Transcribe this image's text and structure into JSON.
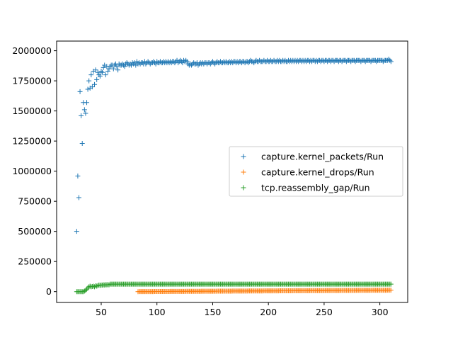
{
  "chart_data": {
    "type": "scatter",
    "marker": "+",
    "xlim": [
      10,
      325
    ],
    "ylim": [
      -90000,
      2080000
    ],
    "x_ticks": [
      50,
      100,
      150,
      200,
      250,
      300
    ],
    "y_ticks": [
      0,
      250000,
      500000,
      750000,
      1000000,
      1250000,
      1500000,
      1750000,
      2000000
    ],
    "x_tick_labels": [
      "50",
      "100",
      "150",
      "200",
      "250",
      "300"
    ],
    "y_tick_labels": [
      "0",
      "250000",
      "500000",
      "750000",
      "1000000",
      "1250000",
      "1500000",
      "1750000",
      "2000000"
    ],
    "grid": false,
    "legend_position": "center-right",
    "series": [
      {
        "name": "capture.kernel_packets/Run",
        "color": "#1f77b4",
        "x_start": 28,
        "x_step": 1,
        "values": [
          500000,
          960000,
          780000,
          1660000,
          1460000,
          1230000,
          1570000,
          1510000,
          1480000,
          1570000,
          1680000,
          1750000,
          1690000,
          1800000,
          1700000,
          1830000,
          1720000,
          1840000,
          1760000,
          1820000,
          1800000,
          1790000,
          1830000,
          1820000,
          1860000,
          1880000,
          1800000,
          1870000,
          1830000,
          1850000,
          1870000,
          1880000,
          1880000,
          1850000,
          1880000,
          1890000,
          1870000,
          1840000,
          1890000,
          1880000,
          1880000,
          1890000,
          1880000,
          1870000,
          1890000,
          1900000,
          1890000,
          1880000,
          1890000,
          1880000,
          1900000,
          1890000,
          1900000,
          1880000,
          1910000,
          1890000,
          1900000,
          1890000,
          1900000,
          1900000,
          1890000,
          1910000,
          1890000,
          1900000,
          1910000,
          1900000,
          1890000,
          1900000,
          1900000,
          1910000,
          1900000,
          1890000,
          1910000,
          1900000,
          1900000,
          1910000,
          1900000,
          1900000,
          1910000,
          1900000,
          1910000,
          1900000,
          1910000,
          1900000,
          1910000,
          1900000,
          1910000,
          1910000,
          1900000,
          1910000,
          1920000,
          1900000,
          1910000,
          1920000,
          1910000,
          1900000,
          1920000,
          1910000,
          1920000,
          1910000,
          1890000,
          1880000,
          1890000,
          1880000,
          1890000,
          1900000,
          1890000,
          1890000,
          1900000,
          1880000,
          1890000,
          1900000,
          1890000,
          1900000,
          1890000,
          1900000,
          1900000,
          1890000,
          1900000,
          1900000,
          1890000,
          1900000,
          1910000,
          1900000,
          1890000,
          1900000,
          1910000,
          1900000,
          1900000,
          1910000,
          1900000,
          1900000,
          1910000,
          1900000,
          1910000,
          1900000,
          1900000,
          1910000,
          1900000,
          1910000,
          1900000,
          1910000,
          1910000,
          1900000,
          1910000,
          1900000,
          1910000,
          1910000,
          1900000,
          1910000,
          1910000,
          1900000,
          1910000,
          1910000,
          1900000,
          1910000,
          1920000,
          1910000,
          1910000,
          1900000,
          1910000,
          1920000,
          1910000,
          1910000,
          1920000,
          1910000,
          1910000,
          1910000,
          1920000,
          1910000,
          1910000,
          1920000,
          1910000,
          1910000,
          1920000,
          1910000,
          1910000,
          1920000,
          1910000,
          1910000,
          1920000,
          1910000,
          1920000,
          1910000,
          1910000,
          1920000,
          1910000,
          1920000,
          1910000,
          1910000,
          1920000,
          1910000,
          1920000,
          1910000,
          1920000,
          1910000,
          1920000,
          1910000,
          1920000,
          1910000,
          1920000,
          1920000,
          1910000,
          1920000,
          1910000,
          1920000,
          1910000,
          1920000,
          1920000,
          1910000,
          1920000,
          1910000,
          1920000,
          1920000,
          1910000,
          1920000,
          1910000,
          1920000,
          1920000,
          1910000,
          1920000,
          1920000,
          1910000,
          1920000,
          1920000,
          1910000,
          1920000,
          1920000,
          1910000,
          1920000,
          1920000,
          1910000,
          1920000,
          1920000,
          1920000,
          1910000,
          1920000,
          1920000,
          1910000,
          1920000,
          1920000,
          1920000,
          1910000,
          1920000,
          1920000,
          1920000,
          1910000,
          1920000,
          1920000,
          1920000,
          1910000,
          1920000,
          1920000,
          1920000,
          1920000,
          1910000,
          1920000,
          1920000,
          1920000,
          1910000,
          1920000,
          1920000,
          1920000,
          1920000,
          1910000,
          1920000,
          1920000,
          1920000,
          1920000,
          1910000,
          1920000,
          1920000,
          1920000,
          1920000,
          1920000,
          1910000,
          1920000,
          1920000,
          1920000,
          1920000,
          1930000,
          1920000,
          1910000
        ]
      },
      {
        "name": "capture.kernel_drops/Run",
        "color": "#ff7f0e",
        "x_start": 83,
        "x_end": 310,
        "y_start": 0,
        "y_end": 12000
      },
      {
        "name": "tcp.reassembly_gap/Run",
        "color": "#2ca02c",
        "x_start": 28,
        "x_step": 1,
        "values_head": [
          0,
          0,
          0,
          0,
          0,
          0,
          0,
          5000,
          10000,
          20000,
          30000,
          40000,
          45000,
          40000,
          42000,
          45000,
          40000,
          48000,
          45000,
          50000,
          55000,
          52000,
          55000,
          54000,
          56000,
          55000,
          57000,
          56000,
          58000,
          56000
        ],
        "tail_value": 62000,
        "x_end": 310
      }
    ]
  }
}
